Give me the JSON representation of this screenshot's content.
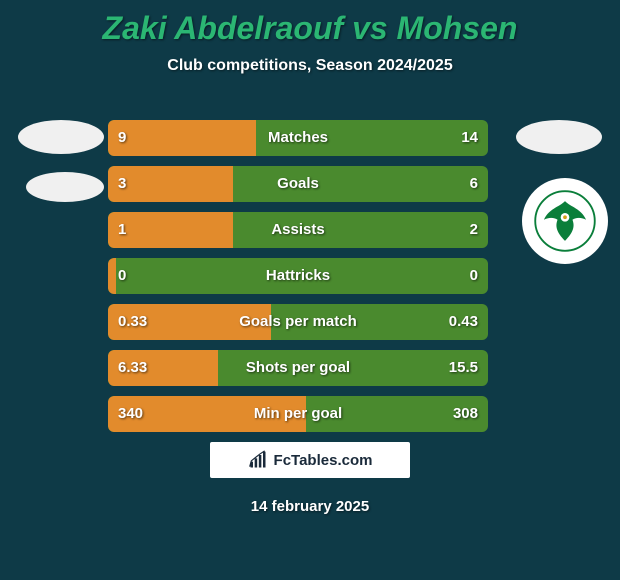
{
  "background_color": "#0e3a47",
  "title": "Zaki Abdelraouf vs Mohsen",
  "title_color": "#2bb673",
  "subtitle": "Club competitions, Season 2024/2025",
  "subtitle_color": "#ffffff",
  "bar_bg_color": "#4a8a2e",
  "bar_fill_color": "#e28b2c",
  "bar_text_color": "#ffffff",
  "placeholder_ellipse_color": "#f0f0f0",
  "club_logo_circle_bg": "#ffffff",
  "club_logo_bird_color": "#0a7e3a",
  "footer_text": "FcTables.com",
  "footer_bg": "#ffffff",
  "footer_text_color": "#1a2a3a",
  "date_text": "14 february 2025",
  "date_color": "#ffffff",
  "rows": [
    {
      "label": "Matches",
      "left": "9",
      "right": "14",
      "fill_pct": 39
    },
    {
      "label": "Goals",
      "left": "3",
      "right": "6",
      "fill_pct": 33
    },
    {
      "label": "Assists",
      "left": "1",
      "right": "2",
      "fill_pct": 33
    },
    {
      "label": "Hattricks",
      "left": "0",
      "right": "0",
      "fill_pct": 2
    },
    {
      "label": "Goals per match",
      "left": "0.33",
      "right": "0.43",
      "fill_pct": 43
    },
    {
      "label": "Shots per goal",
      "left": "6.33",
      "right": "15.5",
      "fill_pct": 29
    },
    {
      "label": "Min per goal",
      "left": "340",
      "right": "308",
      "fill_pct": 52
    }
  ]
}
